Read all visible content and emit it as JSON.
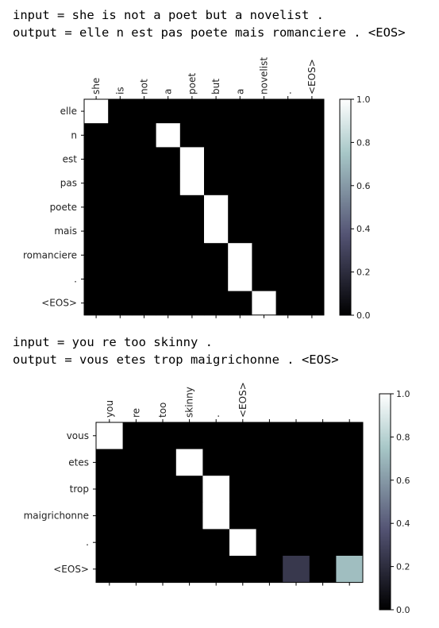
{
  "captions": [
    {
      "input": "input = she is not a poet but a novelist .",
      "output": "output = elle n est pas poete mais romanciere . <EOS>"
    },
    {
      "input": "input = you re too skinny .",
      "output": "output = vous etes trop maigrichonne . <EOS>"
    }
  ],
  "chart_data": [
    {
      "type": "heatmap",
      "colormap": "bone",
      "x_tick_labels": [
        "she",
        "is",
        "not",
        "a",
        "poet",
        "but",
        "a",
        "novelist",
        ".",
        "<EOS>"
      ],
      "y_tick_labels": [
        "elle",
        "n",
        "est",
        "pas",
        "poete",
        "mais",
        "romanciere",
        ".",
        "<EOS>"
      ],
      "n_cols": 10,
      "values": [
        [
          1,
          0,
          0,
          0,
          0,
          0,
          0,
          0,
          0,
          0
        ],
        [
          0,
          0,
          0,
          1,
          0,
          0,
          0,
          0,
          0,
          0
        ],
        [
          0,
          0,
          0,
          0,
          1,
          0,
          0,
          0,
          0,
          0
        ],
        [
          0,
          0,
          0,
          0,
          1,
          0,
          0,
          0,
          0,
          0
        ],
        [
          0,
          0,
          0,
          0,
          0,
          1,
          0,
          0,
          0,
          0
        ],
        [
          0,
          0,
          0,
          0,
          0,
          1,
          0,
          0,
          0,
          0
        ],
        [
          0,
          0,
          0,
          0,
          0,
          0,
          1,
          0,
          0,
          0
        ],
        [
          0,
          0,
          0,
          0,
          0,
          0,
          1,
          0,
          0,
          0
        ],
        [
          0,
          0,
          0,
          0,
          0,
          0,
          0,
          1,
          0,
          0
        ]
      ],
      "colorbar": {
        "range": [
          0,
          1
        ],
        "ticks": [
          "0.0",
          "0.2",
          "0.4",
          "0.6",
          "0.8",
          "1.0"
        ]
      }
    },
    {
      "type": "heatmap",
      "colormap": "bone",
      "x_tick_labels": [
        "you",
        "re",
        "too",
        "skinny",
        ".",
        "<EOS>"
      ],
      "y_tick_labels": [
        "vous",
        "etes",
        "trop",
        "maigrichonne",
        ".",
        "<EOS>"
      ],
      "n_cols": 10,
      "values": [
        [
          1,
          0,
          0,
          0,
          0,
          0,
          0,
          0,
          0,
          0
        ],
        [
          0,
          0,
          0,
          1,
          0,
          0,
          0,
          0,
          0,
          0
        ],
        [
          0,
          0,
          0,
          0,
          1,
          0,
          0,
          0,
          0,
          0
        ],
        [
          0,
          0,
          0,
          0,
          1,
          0,
          0,
          0,
          0,
          0
        ],
        [
          0,
          0,
          0,
          0,
          0,
          1,
          0,
          0,
          0,
          0
        ],
        [
          0,
          0,
          0,
          0,
          0,
          0,
          0,
          0.25,
          0,
          0.72
        ]
      ],
      "colorbar": {
        "range": [
          0,
          1
        ],
        "ticks": [
          "0.0",
          "0.2",
          "0.4",
          "0.6",
          "0.8",
          "1.0"
        ]
      }
    }
  ]
}
